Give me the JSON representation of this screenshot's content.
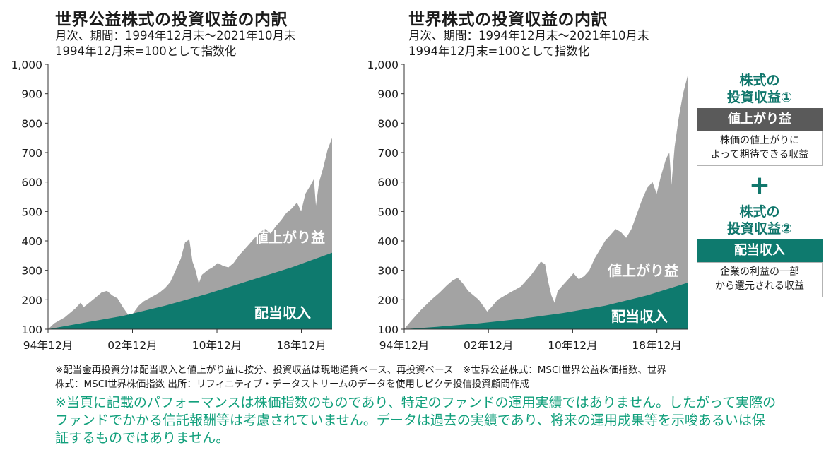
{
  "chart_data": [
    {
      "type": "area",
      "title": "世界公益株式の投資収益の内訳",
      "subtitle_lines": [
        "月次、期間：1994年12月末～2021年10月末",
        "1994年12月末=100として指数化"
      ],
      "yticks": [
        "1,000",
        "900",
        "800",
        "700",
        "600",
        "500",
        "400",
        "300",
        "200",
        "100"
      ],
      "ylim": [
        100,
        1000
      ],
      "xlim": [
        1994.92,
        2021.83
      ],
      "xticks": [
        {
          "label": "94年12月",
          "value": 1994.92
        },
        {
          "label": "02年12月",
          "value": 2002.92
        },
        {
          "label": "10年12月",
          "value": 2010.92
        },
        {
          "label": "18年12月",
          "value": 2018.92
        }
      ],
      "series": [
        {
          "name": "値上がり益",
          "color": "#a3a3a3",
          "x": [
            1994.92,
            1995.5,
            1996.5,
            1997.5,
            1998.0,
            1998.3,
            1999.0,
            1999.5,
            2000.0,
            2000.5,
            2001.0,
            2001.5,
            2002.0,
            2002.5,
            2002.8,
            2003.2,
            2003.5,
            2004.0,
            2004.5,
            2005.0,
            2005.5,
            2006.0,
            2006.5,
            2007.0,
            2007.5,
            2007.9,
            2008.3,
            2008.6,
            2008.9,
            2009.2,
            2009.5,
            2010.0,
            2010.5,
            2011.0,
            2011.5,
            2012.0,
            2012.5,
            2013.0,
            2013.5,
            2014.0,
            2014.5,
            2015.0,
            2015.5,
            2016.0,
            2016.5,
            2017.0,
            2017.5,
            2018.0,
            2018.5,
            2018.9,
            2019.3,
            2019.8,
            2020.1,
            2020.3,
            2020.6,
            2021.0,
            2021.4,
            2021.83
          ],
          "values": [
            100,
            120,
            140,
            170,
            190,
            175,
            195,
            210,
            225,
            230,
            215,
            205,
            175,
            150,
            145,
            165,
            180,
            195,
            205,
            215,
            225,
            240,
            260,
            300,
            340,
            395,
            405,
            330,
            300,
            255,
            285,
            300,
            310,
            325,
            315,
            310,
            325,
            350,
            370,
            390,
            410,
            430,
            440,
            425,
            450,
            470,
            495,
            510,
            530,
            500,
            560,
            590,
            610,
            520,
            600,
            650,
            710,
            750
          ]
        },
        {
          "name": "配当収入",
          "color": "#0e7a6e",
          "x": [
            1994.92,
            1998.0,
            2002.0,
            2006.0,
            2010.0,
            2014.0,
            2018.0,
            2021.83
          ],
          "values": [
            100,
            120,
            145,
            180,
            220,
            265,
            310,
            360
          ]
        }
      ],
      "annotations": [
        "値上がり益",
        "配当収入"
      ]
    },
    {
      "type": "area",
      "title": "世界株式の投資収益の内訳",
      "subtitle_lines": [
        "月次、期間：1994年12月末～2021年10月末",
        "1994年12月末=100として指数化"
      ],
      "yticks": [
        "1,000",
        "900",
        "800",
        "700",
        "600",
        "500",
        "400",
        "300",
        "200",
        "100"
      ],
      "ylim": [
        100,
        1000
      ],
      "xlim": [
        1994.92,
        2021.83
      ],
      "xticks": [
        {
          "label": "94年12月",
          "value": 1994.92
        },
        {
          "label": "02年12月",
          "value": 2002.92
        },
        {
          "label": "10年12月",
          "value": 2010.92
        },
        {
          "label": "18年12月",
          "value": 2018.92
        }
      ],
      "series": [
        {
          "name": "値上がり益",
          "color": "#a3a3a3",
          "x": [
            1994.92,
            1995.5,
            1996.5,
            1997.5,
            1998.3,
            1999.0,
            1999.5,
            2000.0,
            2000.5,
            2001.0,
            2001.5,
            2002.0,
            2002.5,
            2002.8,
            2003.2,
            2003.8,
            2004.5,
            2005.0,
            2005.5,
            2006.0,
            2006.5,
            2007.0,
            2007.5,
            2007.9,
            2008.3,
            2008.6,
            2008.9,
            2009.2,
            2009.5,
            2010.0,
            2010.5,
            2011.0,
            2011.5,
            2012.0,
            2012.5,
            2013.0,
            2013.5,
            2014.0,
            2014.5,
            2015.0,
            2015.5,
            2016.0,
            2016.5,
            2017.0,
            2017.5,
            2018.0,
            2018.5,
            2018.9,
            2019.3,
            2019.8,
            2020.1,
            2020.3,
            2020.6,
            2021.0,
            2021.4,
            2021.83
          ],
          "values": [
            100,
            125,
            165,
            200,
            225,
            250,
            265,
            275,
            255,
            230,
            215,
            200,
            175,
            160,
            175,
            200,
            215,
            225,
            235,
            245,
            265,
            285,
            310,
            330,
            320,
            260,
            215,
            190,
            230,
            250,
            270,
            290,
            270,
            280,
            300,
            340,
            370,
            400,
            420,
            440,
            430,
            410,
            440,
            490,
            540,
            580,
            600,
            560,
            620,
            680,
            700,
            590,
            720,
            820,
            900,
            960
          ]
        },
        {
          "name": "配当収入",
          "color": "#0e7a6e",
          "x": [
            1994.92,
            1998.0,
            2002.0,
            2006.0,
            2010.0,
            2014.0,
            2018.0,
            2021.83
          ],
          "values": [
            100,
            108,
            120,
            135,
            155,
            180,
            215,
            258
          ]
        }
      ],
      "annotations": [
        "値上がり益",
        "配当収入"
      ]
    }
  ],
  "legend": {
    "item1_head": [
      "株式の",
      "投資収益①"
    ],
    "item1_bar": "値上がり益",
    "item1_desc": [
      "株価の値上がりに",
      "よって期待できる収益"
    ],
    "plus": "+",
    "item2_head": [
      "株式の",
      "投資収益②"
    ],
    "item2_bar": "配当収入",
    "item2_desc": [
      "企業の利益の一部",
      "から還元される収益"
    ]
  },
  "notes": {
    "line1": "※配当金再投資分は配当収入と値上がり益に按分、投資収益は現地通貨ベース、再投資ベース　※世界公益株式：MSCI世界公益株価指数、世界",
    "line2": "株式：MSCI世界株価指数 出所：リフィニティブ・データストリームのデータを使用しピクテ投信投資顧問作成"
  },
  "warning": {
    "line1": "※当頁に記載のパフォーマンスは株価指数のものであり、特定のファンドの運用実績ではありません。したがって実際の",
    "line2": "ファンドでかかる信託報酬等は考慮されていません。データは過去の実績であり、将来の運用成果等を示唆あるいは保",
    "line3": "証するものではありません。"
  }
}
